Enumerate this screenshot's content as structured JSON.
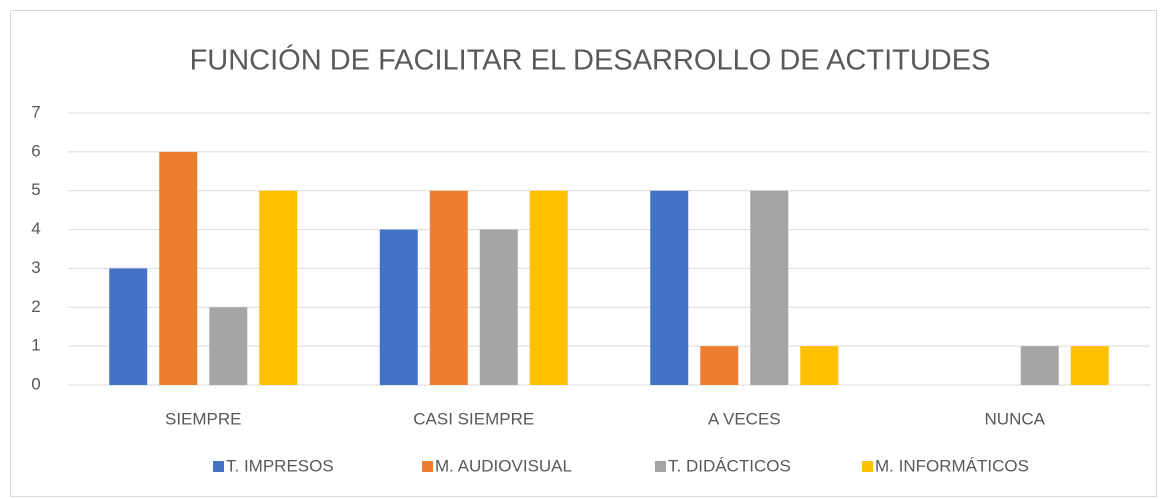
{
  "chart_data": {
    "type": "bar",
    "title": "FUNCIÓN DE FACILITAR EL DESARROLLO DE ACTITUDES",
    "categories": [
      "SIEMPRE",
      "CASI SIEMPRE",
      "A VECES",
      "NUNCA"
    ],
    "series": [
      {
        "name": "T. IMPRESOS",
        "color": "#4472c4",
        "values": [
          3,
          4,
          5,
          0
        ]
      },
      {
        "name": "M. AUDIOVISUAL",
        "color": "#ed7d31",
        "values": [
          6,
          5,
          1,
          0
        ]
      },
      {
        "name": "T. DIDÁCTICOS",
        "color": "#a5a5a5",
        "values": [
          2,
          4,
          5,
          1
        ]
      },
      {
        "name": "M. INFORMÁTICOS",
        "color": "#ffc000",
        "values": [
          5,
          5,
          1,
          1
        ]
      }
    ],
    "ylim": [
      0,
      7
    ],
    "yticks": [
      0,
      1,
      2,
      3,
      4,
      5,
      6,
      7
    ],
    "grid": true,
    "legend": "bottom"
  }
}
